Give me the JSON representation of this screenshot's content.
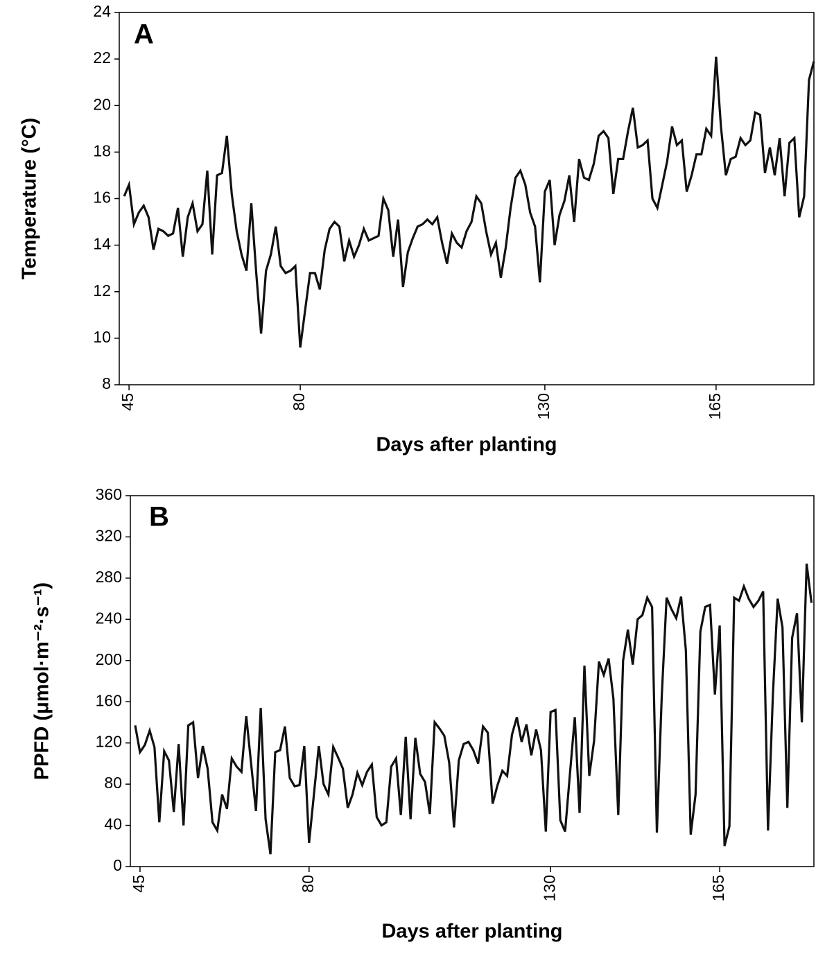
{
  "chart_data": [
    {
      "type": "line",
      "panel_label": "A",
      "x_label": "Days after planting",
      "y_label": "Temperature (°C)",
      "xlim": [
        43,
        185
      ],
      "xticks": [
        45,
        80,
        130,
        165
      ],
      "ylim": [
        8,
        24
      ],
      "yticks": [
        8,
        10,
        12,
        14,
        16,
        18,
        20,
        22,
        24
      ],
      "grid": false,
      "x": [
        44,
        45,
        46,
        47,
        48,
        49,
        50,
        51,
        52,
        53,
        54,
        55,
        56,
        57,
        58,
        59,
        60,
        61,
        62,
        63,
        64,
        65,
        66,
        67,
        68,
        69,
        70,
        71,
        72,
        73,
        74,
        75,
        76,
        77,
        78,
        79,
        80,
        81,
        82,
        83,
        84,
        85,
        86,
        87,
        88,
        89,
        90,
        91,
        92,
        93,
        94,
        95,
        96,
        97,
        98,
        99,
        100,
        101,
        102,
        103,
        104,
        105,
        106,
        107,
        108,
        109,
        110,
        111,
        112,
        113,
        114,
        115,
        116,
        117,
        118,
        119,
        120,
        121,
        122,
        123,
        124,
        125,
        126,
        127,
        128,
        129,
        130,
        131,
        132,
        133,
        134,
        135,
        136,
        137,
        138,
        139,
        140,
        141,
        142,
        143,
        144,
        145,
        146,
        147,
        148,
        149,
        150,
        151,
        152,
        153,
        154,
        155,
        156,
        157,
        158,
        159,
        160,
        161,
        162,
        163,
        164,
        165,
        166,
        167,
        168,
        169,
        170,
        171,
        172,
        173,
        174,
        175,
        176,
        177,
        178,
        179,
        180,
        181,
        182,
        183,
        184,
        185
      ],
      "series": [
        {
          "color": "#111111",
          "values": [
            16.1,
            16.6,
            14.9,
            15.4,
            15.7,
            15.2,
            13.8,
            14.7,
            14.6,
            14.4,
            14.5,
            15.6,
            13.5,
            15.2,
            15.8,
            14.6,
            14.9,
            17.2,
            13.6,
            17.0,
            17.1,
            18.7,
            16.2,
            14.6,
            13.6,
            12.9,
            15.8,
            12.8,
            10.2,
            12.9,
            13.6,
            14.8,
            13.1,
            12.8,
            12.9,
            13.1,
            9.6,
            11.2,
            12.8,
            12.8,
            12.1,
            13.8,
            14.7,
            15.0,
            14.8,
            13.3,
            14.2,
            13.5,
            14.0,
            14.7,
            14.2,
            14.3,
            14.4,
            16.0,
            15.5,
            13.5,
            15.1,
            12.2,
            13.7,
            14.3,
            14.8,
            14.9,
            15.1,
            14.9,
            15.2,
            14.1,
            13.2,
            14.5,
            14.1,
            13.9,
            14.6,
            15.0,
            16.1,
            15.8,
            14.6,
            13.6,
            14.1,
            12.6,
            13.9,
            15.6,
            16.9,
            17.2,
            16.6,
            15.4,
            14.8,
            12.4,
            16.3,
            16.8,
            14.0,
            15.3,
            15.9,
            17.0,
            15.0,
            17.7,
            16.9,
            16.8,
            17.5,
            18.7,
            18.9,
            18.6,
            16.2,
            17.7,
            17.7,
            18.9,
            19.9,
            18.2,
            18.3,
            18.5,
            16.0,
            15.6,
            16.6,
            17.6,
            19.1,
            18.3,
            18.5,
            16.3,
            17.0,
            17.9,
            17.9,
            19.0,
            18.7,
            22.1,
            19.1,
            17.0,
            17.7,
            17.8,
            18.6,
            18.3,
            18.5,
            19.7,
            19.6,
            17.1,
            18.2,
            17.0,
            18.6,
            16.1,
            18.4,
            18.6,
            15.2,
            16.1,
            21.1,
            21.9
          ]
        }
      ]
    },
    {
      "type": "line",
      "panel_label": "B",
      "x_label": "Days after planting",
      "y_label": "PPFD (μmol·m⁻²·s⁻¹)",
      "xlim": [
        43,
        184.5
      ],
      "xticks": [
        45,
        80,
        130,
        165
      ],
      "ylim": [
        0,
        360
      ],
      "yticks": [
        0,
        40,
        80,
        120,
        160,
        200,
        240,
        280,
        320,
        360
      ],
      "grid": false,
      "x": [
        44,
        45,
        46,
        47,
        48,
        49,
        50,
        51,
        52,
        53,
        54,
        55,
        56,
        57,
        58,
        59,
        60,
        61,
        62,
        63,
        64,
        65,
        66,
        67,
        68,
        69,
        70,
        71,
        72,
        73,
        74,
        75,
        76,
        77,
        78,
        79,
        80,
        81,
        82,
        83,
        84,
        85,
        86,
        87,
        88,
        89,
        90,
        91,
        92,
        93,
        94,
        95,
        96,
        97,
        98,
        99,
        100,
        101,
        102,
        103,
        104,
        105,
        106,
        107,
        108,
        109,
        110,
        111,
        112,
        113,
        114,
        115,
        116,
        117,
        118,
        119,
        120,
        121,
        122,
        123,
        124,
        125,
        126,
        127,
        128,
        129,
        130,
        131,
        132,
        133,
        134,
        135,
        136,
        137,
        138,
        139,
        140,
        141,
        142,
        143,
        144,
        145,
        146,
        147,
        148,
        149,
        150,
        151,
        152,
        153,
        154,
        155,
        156,
        157,
        158,
        159,
        160,
        161,
        162,
        163,
        164,
        165,
        166,
        167,
        168,
        169,
        170,
        171,
        172,
        173,
        174,
        175,
        176,
        177,
        178,
        179,
        180,
        181,
        182,
        183,
        184
      ],
      "series": [
        {
          "color": "#111111",
          "values": [
            137,
            111,
            118,
            132,
            116,
            43,
            112,
            103,
            53,
            119,
            40,
            137,
            140,
            86,
            117,
            95,
            43,
            35,
            70,
            56,
            105,
            97,
            92,
            146,
            100,
            54,
            154,
            46,
            12,
            111,
            113,
            136,
            86,
            78,
            79,
            117,
            23,
            70,
            117,
            80,
            70,
            116,
            106,
            95,
            57,
            70,
            91,
            79,
            92,
            99,
            48,
            40,
            43,
            97,
            105,
            50,
            126,
            46,
            125,
            90,
            82,
            51,
            140,
            134,
            127,
            101,
            38,
            103,
            119,
            121,
            113,
            100,
            136,
            130,
            61,
            79,
            93,
            88,
            128,
            145,
            121,
            138,
            108,
            133,
            113,
            34,
            150,
            152,
            45,
            34,
            90,
            145,
            52,
            195,
            88,
            122,
            199,
            186,
            202,
            163,
            50,
            200,
            230,
            196,
            240,
            244,
            261,
            252,
            33,
            165,
            261,
            250,
            241,
            262,
            210,
            31,
            70,
            228,
            252,
            254,
            167,
            234,
            20,
            39,
            261,
            258,
            272,
            260,
            252,
            258,
            267,
            35,
            166,
            260,
            232,
            57,
            222,
            246,
            140,
            294,
            256
          ]
        }
      ]
    }
  ]
}
